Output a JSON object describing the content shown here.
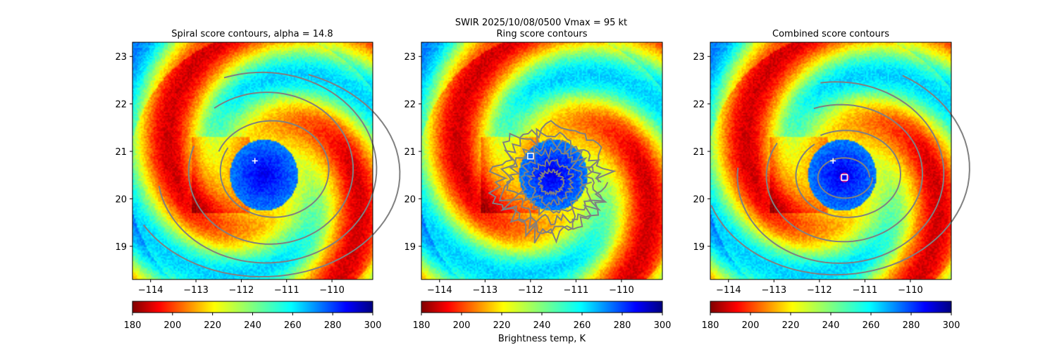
{
  "suptitle": "SWIR  2025/10/08/0500    Vmax = 95 kt",
  "colorbar_label": "Brightness temp, K",
  "chart_data": [
    {
      "type": "heatmap",
      "title": "Spiral score contours, alpha = 14.8",
      "xlim": [
        -114.4,
        -109.1
      ],
      "ylim": [
        18.3,
        23.3
      ],
      "xticks": [
        -114,
        -113,
        -112,
        -111,
        -110
      ],
      "xtick_labels": [
        "−114",
        "−113",
        "−112",
        "−111",
        "−110"
      ],
      "yticks": [
        19,
        20,
        21,
        22,
        23
      ],
      "ytick_labels": [
        "19",
        "20",
        "21",
        "22",
        "23"
      ],
      "colormap": "jet_r",
      "color_range": [
        180,
        300
      ],
      "colorbar_ticks": [
        180,
        200,
        220,
        240,
        260,
        280,
        300
      ],
      "storm_center": {
        "lon": -111.5,
        "lat": 20.5
      },
      "markers": [
        {
          "kind": "plus",
          "lon": -111.7,
          "lat": 20.8,
          "color": "#ffffff"
        }
      ],
      "contours": {
        "color": "#808080",
        "levels": [
          {
            "center_lon": -111.3,
            "center_lat": 20.6,
            "rx": 1.15,
            "ry": 0.95,
            "start_deg": 150,
            "end_deg": 520
          },
          {
            "center_lon": -111.4,
            "center_lat": 20.6,
            "rx": 1.75,
            "ry": 1.5,
            "start_deg": 160,
            "end_deg": 490
          },
          {
            "center_lon": -111.5,
            "center_lat": 20.6,
            "rx": 2.35,
            "ry": 1.9,
            "start_deg": 190,
            "end_deg": 470
          },
          {
            "center_lon": -111.6,
            "center_lat": 20.5,
            "rx": 2.95,
            "ry": 2.1,
            "start_deg": 210,
            "end_deg": 430
          }
        ]
      }
    },
    {
      "type": "heatmap",
      "title": "Ring score contours",
      "xlim": [
        -114.4,
        -109.1
      ],
      "ylim": [
        18.3,
        23.3
      ],
      "xticks": [
        -114,
        -113,
        -112,
        -111,
        -110
      ],
      "xtick_labels": [
        "−114",
        "−113",
        "−112",
        "−111",
        "−110"
      ],
      "yticks": [
        19,
        20,
        21,
        22,
        23
      ],
      "ytick_labels": [
        "19",
        "20",
        "21",
        "22",
        "23"
      ],
      "colormap": "jet_r",
      "color_range": [
        180,
        300
      ],
      "colorbar_ticks": [
        180,
        200,
        220,
        240,
        260,
        280,
        300
      ],
      "storm_center": {
        "lon": -111.5,
        "lat": 20.5
      },
      "markers": [
        {
          "kind": "square",
          "lon": -112.0,
          "lat": 20.9,
          "color": "#ffffff"
        }
      ],
      "contours": {
        "color": "#808080",
        "style": "noisy-rings",
        "center_lon": -111.55,
        "center_lat": 20.35,
        "radii_deg": [
          0.25,
          0.45,
          0.65,
          0.85,
          1.05,
          1.2
        ]
      }
    },
    {
      "type": "heatmap",
      "title": "Combined score contours",
      "xlim": [
        -114.4,
        -109.1
      ],
      "ylim": [
        18.3,
        23.3
      ],
      "xticks": [
        -114,
        -113,
        -112,
        -111,
        -110
      ],
      "xtick_labels": [
        "−114",
        "−113",
        "−112",
        "−111",
        "−110"
      ],
      "yticks": [
        19,
        20,
        21,
        22,
        23
      ],
      "ytick_labels": [
        "19",
        "20",
        "21",
        "22",
        "23"
      ],
      "colormap": "jet_r",
      "color_range": [
        180,
        300
      ],
      "colorbar_ticks": [
        180,
        200,
        220,
        240,
        260,
        280,
        300
      ],
      "storm_center": {
        "lon": -111.5,
        "lat": 20.5
      },
      "markers": [
        {
          "kind": "plus",
          "lon": -111.7,
          "lat": 20.8,
          "color": "#ffffff"
        },
        {
          "kind": "square",
          "lon": -111.45,
          "lat": 20.45,
          "color": "#ffffff",
          "ring_color": "#e0208a"
        }
      ],
      "contours": {
        "color": "#808080",
        "levels": [
          {
            "center_lon": -111.45,
            "center_lat": 20.45,
            "rx": 0.55,
            "ry": 0.4,
            "start_deg": 0,
            "end_deg": 360
          },
          {
            "center_lon": -111.4,
            "center_lat": 20.5,
            "rx": 1.1,
            "ry": 0.85,
            "start_deg": 130,
            "end_deg": 480
          },
          {
            "center_lon": -111.5,
            "center_lat": 20.5,
            "rx": 1.65,
            "ry": 1.35,
            "start_deg": 150,
            "end_deg": 470
          },
          {
            "center_lon": -111.6,
            "center_lat": 20.5,
            "rx": 2.2,
            "ry": 1.8,
            "start_deg": 175,
            "end_deg": 460
          },
          {
            "center_lon": -111.7,
            "center_lat": 20.6,
            "rx": 2.85,
            "ry": 2.15,
            "start_deg": 200,
            "end_deg": 420
          }
        ]
      }
    }
  ]
}
